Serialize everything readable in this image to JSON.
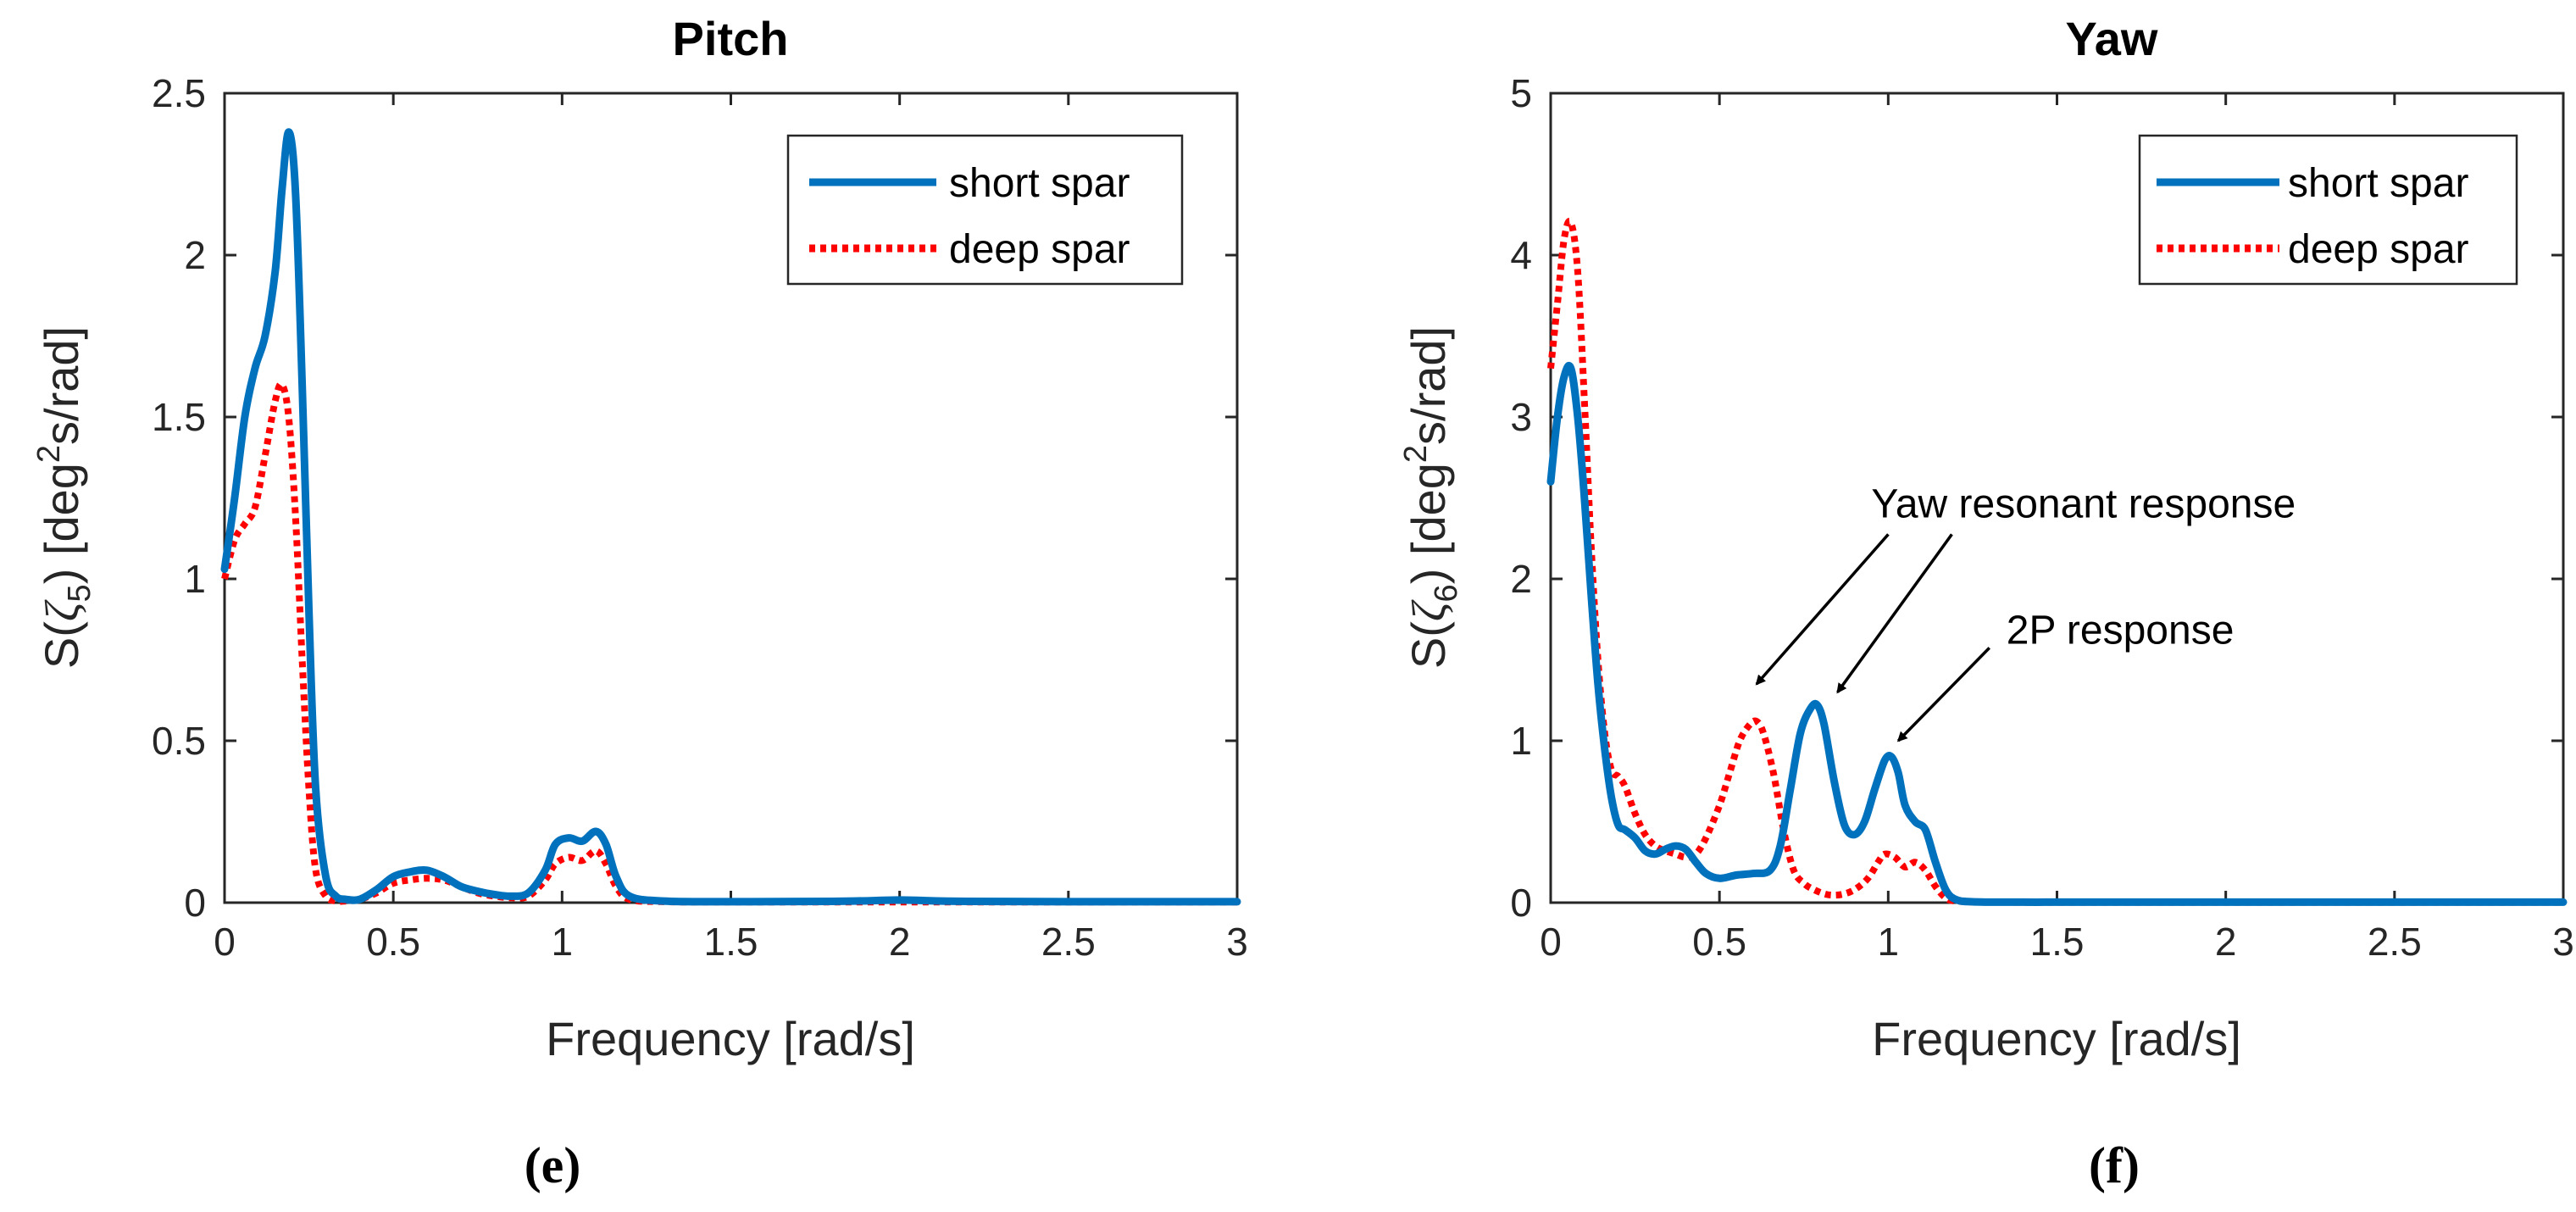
{
  "colors": {
    "short": "#0072BD",
    "deep": "#FF0000"
  },
  "chart_data": [
    {
      "type": "line",
      "id": "pitch",
      "panel_label": "(e)",
      "title": "Pitch",
      "xlabel": "Frequency [rad/s]",
      "ylabel": "S(ζ5) [deg2s/rad]",
      "ylabel_parts": {
        "pre": "S(",
        "sym": "ζ",
        "sub": "5",
        "mid": ") [deg",
        "sup": "2",
        "post": "s/rad]"
      },
      "xlim": [
        0,
        3
      ],
      "ylim": [
        0,
        2.5
      ],
      "xticks": [
        0,
        0.5,
        1,
        1.5,
        2,
        2.5,
        3
      ],
      "xtick_labels": [
        "0",
        "0.5",
        "1",
        "1.5",
        "2",
        "2.5",
        "3"
      ],
      "yticks": [
        0,
        0.5,
        1,
        1.5,
        2,
        2.5
      ],
      "ytick_labels": [
        "0",
        "0.5",
        "1",
        "1.5",
        "2",
        "2.5"
      ],
      "legend": [
        "short spar",
        "deep spar"
      ],
      "legend_position": "top-right",
      "series": [
        {
          "name": "short spar",
          "style": "solid",
          "x": [
            0.0,
            0.03,
            0.06,
            0.09,
            0.12,
            0.15,
            0.17,
            0.19,
            0.21,
            0.23,
            0.25,
            0.27,
            0.3,
            0.33,
            0.36,
            0.4,
            0.45,
            0.5,
            0.55,
            0.6,
            0.65,
            0.7,
            0.75,
            0.8,
            0.85,
            0.9,
            0.95,
            0.98,
            1.02,
            1.06,
            1.1,
            1.13,
            1.16,
            1.2,
            1.3,
            1.5,
            1.8,
            1.95,
            2.0,
            2.05,
            2.2,
            2.5,
            3.0
          ],
          "y": [
            1.03,
            1.25,
            1.5,
            1.65,
            1.75,
            1.95,
            2.2,
            2.38,
            2.2,
            1.6,
            0.9,
            0.35,
            0.08,
            0.02,
            0.01,
            0.01,
            0.04,
            0.08,
            0.095,
            0.1,
            0.08,
            0.05,
            0.035,
            0.025,
            0.02,
            0.03,
            0.1,
            0.18,
            0.2,
            0.19,
            0.22,
            0.18,
            0.08,
            0.02,
            0.005,
            0.003,
            0.004,
            0.007,
            0.008,
            0.007,
            0.004,
            0.003,
            0.003
          ]
        },
        {
          "name": "deep spar",
          "style": "dotted",
          "x": [
            0.0,
            0.03,
            0.06,
            0.09,
            0.12,
            0.15,
            0.17,
            0.19,
            0.21,
            0.23,
            0.25,
            0.27,
            0.3,
            0.33,
            0.36,
            0.4,
            0.45,
            0.5,
            0.55,
            0.6,
            0.65,
            0.7,
            0.75,
            0.8,
            0.85,
            0.9,
            0.95,
            0.98,
            1.02,
            1.06,
            1.1,
            1.13,
            1.16,
            1.2,
            1.3,
            1.5,
            2.0,
            2.5,
            3.0
          ],
          "y": [
            1.0,
            1.12,
            1.17,
            1.22,
            1.38,
            1.55,
            1.6,
            1.5,
            1.2,
            0.75,
            0.35,
            0.1,
            0.02,
            0.005,
            0.005,
            0.01,
            0.03,
            0.06,
            0.07,
            0.075,
            0.07,
            0.05,
            0.03,
            0.02,
            0.015,
            0.02,
            0.07,
            0.12,
            0.14,
            0.13,
            0.16,
            0.12,
            0.05,
            0.01,
            0.003,
            0.002,
            0.002,
            0.002,
            0.002
          ]
        }
      ]
    },
    {
      "type": "line",
      "id": "yaw",
      "panel_label": "(f)",
      "title": "Yaw",
      "xlabel": "Frequency [rad/s]",
      "ylabel": "S(ζ6) [deg2s/rad]",
      "ylabel_parts": {
        "pre": "S(",
        "sym": "ζ",
        "sub": "6",
        "mid": ") [deg",
        "sup": "2",
        "post": "s/rad]"
      },
      "xlim": [
        0,
        3
      ],
      "ylim": [
        0,
        5
      ],
      "xticks": [
        0,
        0.5,
        1,
        1.5,
        2,
        2.5,
        3
      ],
      "xtick_labels": [
        "0",
        "0.5",
        "1",
        "1.5",
        "2",
        "2.5",
        "3"
      ],
      "yticks": [
        0,
        1,
        2,
        3,
        4,
        5
      ],
      "ytick_labels": [
        "0",
        "1",
        "2",
        "3",
        "4",
        "5"
      ],
      "legend": [
        "short spar",
        "deep spar"
      ],
      "legend_position": "top-right",
      "series": [
        {
          "name": "short spar",
          "style": "solid",
          "x": [
            0.0,
            0.02,
            0.04,
            0.06,
            0.08,
            0.1,
            0.12,
            0.14,
            0.16,
            0.18,
            0.2,
            0.22,
            0.25,
            0.28,
            0.31,
            0.34,
            0.37,
            0.4,
            0.43,
            0.46,
            0.5,
            0.55,
            0.6,
            0.65,
            0.68,
            0.71,
            0.74,
            0.77,
            0.79,
            0.81,
            0.84,
            0.87,
            0.9,
            0.93,
            0.96,
            0.99,
            1.01,
            1.03,
            1.05,
            1.08,
            1.11,
            1.14,
            1.17,
            1.2,
            1.25,
            1.4,
            1.6,
            2.0,
            2.5,
            3.0
          ],
          "y": [
            2.6,
            3.0,
            3.25,
            3.3,
            3.0,
            2.5,
            1.9,
            1.35,
            0.95,
            0.65,
            0.48,
            0.45,
            0.4,
            0.32,
            0.3,
            0.33,
            0.35,
            0.33,
            0.25,
            0.18,
            0.15,
            0.17,
            0.18,
            0.2,
            0.35,
            0.7,
            1.05,
            1.2,
            1.22,
            1.1,
            0.75,
            0.48,
            0.42,
            0.5,
            0.7,
            0.88,
            0.9,
            0.8,
            0.6,
            0.5,
            0.45,
            0.25,
            0.08,
            0.02,
            0.005,
            0.003,
            0.003,
            0.003,
            0.003,
            0.003
          ]
        },
        {
          "name": "deep spar",
          "style": "dotted",
          "x": [
            0.0,
            0.02,
            0.04,
            0.06,
            0.08,
            0.1,
            0.12,
            0.14,
            0.16,
            0.18,
            0.2,
            0.22,
            0.25,
            0.28,
            0.31,
            0.34,
            0.37,
            0.4,
            0.43,
            0.46,
            0.5,
            0.53,
            0.56,
            0.59,
            0.61,
            0.63,
            0.66,
            0.69,
            0.72,
            0.75,
            0.78,
            0.82,
            0.86,
            0.9,
            0.94,
            0.97,
            0.99,
            1.02,
            1.05,
            1.08,
            1.11,
            1.14,
            1.17,
            1.2,
            1.3,
            1.6,
            2.0,
            2.5,
            3.0
          ],
          "y": [
            3.3,
            3.7,
            4.1,
            4.2,
            3.9,
            3.1,
            2.2,
            1.5,
            1.05,
            0.82,
            0.78,
            0.72,
            0.55,
            0.42,
            0.35,
            0.32,
            0.3,
            0.28,
            0.3,
            0.4,
            0.6,
            0.8,
            1.0,
            1.1,
            1.12,
            1.05,
            0.8,
            0.45,
            0.2,
            0.12,
            0.08,
            0.05,
            0.05,
            0.08,
            0.15,
            0.25,
            0.3,
            0.28,
            0.22,
            0.25,
            0.2,
            0.1,
            0.03,
            0.01,
            0.003,
            0.002,
            0.002,
            0.002,
            0.002
          ]
        }
      ],
      "annotations": [
        {
          "text": "Yaw resonant response",
          "x": 0.95,
          "y": 2.38,
          "arrows_to": [
            [
              0.61,
              1.35
            ],
            [
              0.85,
              1.3
            ]
          ]
        },
        {
          "text": "2P response",
          "x": 1.35,
          "y": 1.6,
          "arrows_to": [
            [
              1.03,
              1.0
            ]
          ]
        }
      ]
    }
  ]
}
